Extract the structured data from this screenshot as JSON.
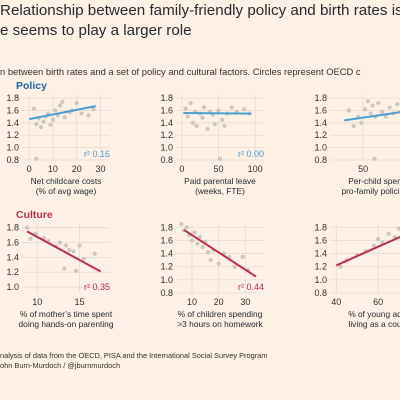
{
  "title_lines": [
    "Relationship between family-friendly policy and birth rates is wea",
    "e seems to play a larger role"
  ],
  "subtitle": "n between birth rates and a set of policy and cultural factors. Circles represent OECD c",
  "sections": {
    "policy": "Policy",
    "culture": "Culture"
  },
  "colors": {
    "policy": "#4d9fcf",
    "culture": "#b83247",
    "points": "#c8c2bc",
    "grid": "#e7dbcf"
  },
  "footer_lines": [
    "nalysis of data from the OECD, PISA and the International Social Survey Program",
    "ohn Burn-Murdoch / @jburnmurdoch"
  ],
  "chart_data": [
    {
      "type": "scatter",
      "group": "policy",
      "xlabel_lines": [
        "Net childcare costs",
        "(% of avg wage)"
      ],
      "xticks": [
        0,
        10,
        20,
        30
      ],
      "yticks": [
        0.8,
        1.0,
        1.2,
        1.4,
        1.6,
        1.8
      ],
      "xlim": [
        -3,
        34
      ],
      "ylim": [
        0.8,
        1.85
      ],
      "r2": "r² 0.16",
      "trend": [
        [
          0,
          1.46
        ],
        [
          28,
          1.67
        ]
      ],
      "points": [
        [
          2,
          1.63
        ],
        [
          3,
          1.38
        ],
        [
          4,
          1.47
        ],
        [
          5,
          1.33
        ],
        [
          6,
          1.42
        ],
        [
          7,
          1.5
        ],
        [
          8,
          1.55
        ],
        [
          9,
          1.37
        ],
        [
          10,
          1.45
        ],
        [
          11,
          1.6
        ],
        [
          12,
          1.52
        ],
        [
          13,
          1.68
        ],
        [
          14,
          1.74
        ],
        [
          15,
          1.49
        ],
        [
          17,
          1.57
        ],
        [
          18,
          1.6
        ],
        [
          20,
          1.72
        ],
        [
          22,
          1.55
        ],
        [
          25,
          1.52
        ],
        [
          27,
          1.62
        ],
        [
          3,
          0.82
        ]
      ]
    },
    {
      "type": "scatter",
      "group": "policy",
      "xlabel_lines": [
        "Paid parental leave",
        "(weeks, FTE)"
      ],
      "xticks": [
        0,
        50,
        100
      ],
      "yticks": [
        0.8,
        1.0,
        1.2,
        1.4,
        1.6,
        1.8
      ],
      "xlim": [
        -8,
        112
      ],
      "ylim": [
        0.8,
        1.85
      ],
      "r2": "r² 0.00",
      "trend": [
        [
          2,
          1.56
        ],
        [
          95,
          1.55
        ]
      ],
      "points": [
        [
          5,
          1.63
        ],
        [
          8,
          1.5
        ],
        [
          12,
          1.72
        ],
        [
          15,
          1.4
        ],
        [
          18,
          1.58
        ],
        [
          20,
          1.35
        ],
        [
          25,
          1.55
        ],
        [
          28,
          1.48
        ],
        [
          30,
          1.65
        ],
        [
          35,
          1.3
        ],
        [
          38,
          1.58
        ],
        [
          42,
          1.53
        ],
        [
          45,
          1.38
        ],
        [
          50,
          1.6
        ],
        [
          55,
          1.45
        ],
        [
          58,
          1.35
        ],
        [
          62,
          1.55
        ],
        [
          68,
          1.65
        ],
        [
          75,
          1.58
        ],
        [
          85,
          1.62
        ],
        [
          92,
          1.55
        ],
        [
          52,
          0.82
        ]
      ]
    },
    {
      "type": "scatter",
      "group": "policy",
      "xlabel_lines": [
        "Per-child spen",
        "pro-family policies"
      ],
      "xticks": [
        50,
        100
      ],
      "yticks": [
        0.8,
        1.0,
        1.2,
        1.4,
        1.6,
        1.8
      ],
      "xlim": [
        15,
        110
      ],
      "ylim": [
        0.8,
        1.85
      ],
      "r2": "",
      "trend": [
        [
          30,
          1.44
        ],
        [
          110,
          1.62
        ]
      ],
      "points": [
        [
          35,
          1.6
        ],
        [
          40,
          1.35
        ],
        [
          45,
          1.5
        ],
        [
          48,
          1.4
        ],
        [
          52,
          1.62
        ],
        [
          55,
          1.75
        ],
        [
          58,
          1.55
        ],
        [
          60,
          1.68
        ],
        [
          63,
          1.5
        ],
        [
          66,
          1.72
        ],
        [
          70,
          1.58
        ],
        [
          74,
          1.5
        ],
        [
          78,
          1.65
        ],
        [
          82,
          1.55
        ],
        [
          86,
          1.7
        ],
        [
          90,
          1.58
        ],
        [
          95,
          1.62
        ],
        [
          62,
          0.82
        ]
      ]
    },
    {
      "type": "scatter",
      "group": "culture",
      "xlabel_lines": [
        "% of mother’s time spent",
        "doing hands-on parenting"
      ],
      "xticks": [
        10,
        15
      ],
      "yticks": [
        1.0,
        1.2,
        1.4,
        1.6,
        1.8
      ],
      "xlim": [
        8.2,
        18.6
      ],
      "ylim": [
        0.92,
        1.85
      ],
      "r2": "r² 0.35",
      "trend": [
        [
          8.8,
          1.75
        ],
        [
          17.5,
          1.21
        ]
      ],
      "points": [
        [
          8.8,
          1.8
        ],
        [
          9.2,
          1.65
        ],
        [
          9.8,
          1.72
        ],
        [
          10.8,
          1.66
        ],
        [
          11.3,
          1.62
        ],
        [
          12.2,
          1.55
        ],
        [
          12.7,
          1.6
        ],
        [
          13.4,
          1.56
        ],
        [
          13.8,
          1.5
        ],
        [
          14.3,
          1.48
        ],
        [
          15.0,
          1.56
        ],
        [
          15.5,
          1.38
        ],
        [
          16.8,
          1.45
        ],
        [
          13.2,
          1.25
        ],
        [
          14.6,
          1.22
        ]
      ]
    },
    {
      "type": "scatter",
      "group": "culture",
      "xlabel_lines": [
        "% of children spending",
        ">3 hours on homework"
      ],
      "xticks": [
        10,
        20,
        30
      ],
      "yticks": [
        0.8,
        1.0,
        1.2,
        1.4,
        1.6,
        1.8
      ],
      "xlim": [
        4,
        37
      ],
      "ylim": [
        0.8,
        1.85
      ],
      "r2": "r² 0.44",
      "trend": [
        [
          7,
          1.76
        ],
        [
          34,
          1.05
        ]
      ],
      "points": [
        [
          6,
          1.85
        ],
        [
          7,
          1.75
        ],
        [
          8,
          1.8
        ],
        [
          9,
          1.68
        ],
        [
          10,
          1.6
        ],
        [
          11,
          1.72
        ],
        [
          12,
          1.55
        ],
        [
          13,
          1.65
        ],
        [
          14,
          1.5
        ],
        [
          15,
          1.58
        ],
        [
          16,
          1.42
        ],
        [
          17,
          1.3
        ],
        [
          18,
          1.45
        ],
        [
          20,
          1.25
        ],
        [
          22,
          1.4
        ],
        [
          24,
          1.35
        ],
        [
          26,
          1.2
        ],
        [
          29,
          1.35
        ],
        [
          31,
          1.15
        ]
      ]
    },
    {
      "type": "scatter",
      "group": "culture",
      "xlabel_lines": [
        "% of young ad",
        "living as a cou"
      ],
      "xticks": [
        40,
        60
      ],
      "yticks": [
        0.8,
        1.0,
        1.2,
        1.4,
        1.6,
        1.8
      ],
      "xlim": [
        37,
        80
      ],
      "ylim": [
        0.8,
        1.85
      ],
      "r2": "",
      "trend": [
        [
          40,
          1.22
        ],
        [
          78,
          1.76
        ]
      ],
      "points": [
        [
          42,
          1.2
        ],
        [
          45,
          1.3
        ],
        [
          50,
          1.38
        ],
        [
          54,
          1.44
        ],
        [
          58,
          1.52
        ],
        [
          60,
          1.62
        ],
        [
          62,
          1.57
        ],
        [
          65,
          1.7
        ],
        [
          68,
          1.65
        ],
        [
          70,
          1.78
        ],
        [
          72,
          1.72
        ],
        [
          74,
          1.83
        ],
        [
          76,
          1.68
        ]
      ]
    }
  ]
}
